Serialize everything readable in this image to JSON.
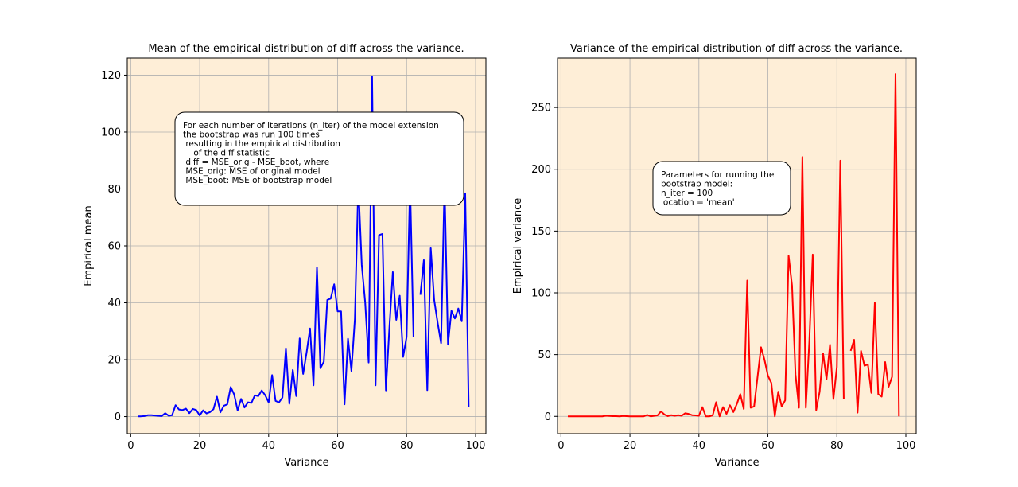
{
  "chart_data": [
    {
      "type": "line",
      "title": "Mean of the empirical distribution of diff across the variance.",
      "xlabel": "Variance",
      "ylabel": "Empirical mean",
      "xlim": [
        -1,
        103
      ],
      "ylim": [
        -6,
        126
      ],
      "xticks": [
        0,
        20,
        40,
        60,
        80,
        100
      ],
      "yticks": [
        0,
        20,
        40,
        60,
        80,
        100,
        120
      ],
      "grid": true,
      "background": "#feeed7",
      "series": [
        {
          "color": "#0000ff",
          "x": [
            2,
            3,
            4,
            5,
            6,
            7,
            8,
            9,
            10,
            11,
            12,
            13,
            14,
            15,
            16,
            17,
            18,
            19,
            20,
            21,
            22,
            23,
            24,
            25,
            26,
            27,
            28,
            29,
            30,
            31,
            32,
            33,
            34,
            35,
            36,
            37,
            38,
            39,
            40,
            41,
            42,
            43,
            44,
            45,
            46,
            47,
            48,
            49,
            50,
            51,
            52,
            53,
            54,
            55,
            56,
            57,
            58,
            59,
            60,
            61,
            62,
            63,
            64,
            65,
            66,
            67,
            68,
            69,
            70,
            71,
            72,
            73,
            74,
            75,
            76,
            77,
            78,
            79,
            80,
            81,
            82,
            83,
            84,
            85,
            86,
            87,
            88,
            89,
            90,
            91,
            92,
            93,
            94,
            95,
            96,
            97,
            98
          ],
          "y": [
            0.1,
            0.1,
            0.2,
            0.5,
            0.5,
            0.4,
            0.3,
            0.2,
            1.2,
            0.3,
            0.5,
            4,
            2.5,
            2.3,
            2.8,
            1.2,
            2.7,
            2.3,
            0.4,
            2.2,
            1.1,
            1.6,
            2.6,
            7,
            1.5,
            3.8,
            4.3,
            10.4,
            7.8,
            2.2,
            6.2,
            3.2,
            5,
            4.8,
            7.5,
            7.2,
            9.2,
            7.5,
            5,
            14.6,
            5.5,
            5,
            6.7,
            24,
            4.5,
            16.4,
            7.2,
            27.5,
            15,
            22.5,
            31,
            11,
            52.5,
            17,
            19.3,
            41,
            41.5,
            46.5,
            37,
            37,
            4.3,
            27.4,
            16,
            34.3,
            82,
            53.3,
            40,
            19,
            119.5,
            11,
            63.8,
            64.2,
            9.2,
            31,
            50.8,
            34,
            42.5,
            21,
            28,
            82.5,
            28,
            null,
            42.8,
            55,
            9.3,
            59.2,
            41,
            33,
            25.8,
            82,
            25.3,
            37.2,
            34.5,
            38,
            33.5,
            78.5,
            3.5
          ]
        }
      ],
      "annotation": [
        "For each number of iterations (n_iter) of the model extension",
        "the bootstrap was run 100 times",
        " resulting in the empirical distribution",
        "    of the diff statistic",
        " diff = MSE_orig - MSE_boot, where",
        " MSE_orig: MSE of original model",
        " MSE_boot: MSE of bootstrap model"
      ]
    },
    {
      "type": "line",
      "title": "Variance of the empirical distribution of diff across the variance.",
      "xlabel": "Variance",
      "ylabel": "Empirical variance",
      "xlim": [
        -1,
        103
      ],
      "ylim": [
        -14,
        290
      ],
      "xticks": [
        0,
        20,
        40,
        60,
        80,
        100
      ],
      "yticks": [
        0,
        50,
        100,
        150,
        200,
        250
      ],
      "grid": true,
      "background": "#feeed7",
      "series": [
        {
          "color": "#ff0000",
          "x": [
            2,
            3,
            4,
            5,
            6,
            7,
            8,
            9,
            10,
            11,
            12,
            13,
            14,
            15,
            16,
            17,
            18,
            19,
            20,
            21,
            22,
            23,
            24,
            25,
            26,
            27,
            28,
            29,
            30,
            31,
            32,
            33,
            34,
            35,
            36,
            37,
            38,
            39,
            40,
            41,
            42,
            43,
            44,
            45,
            46,
            47,
            48,
            49,
            50,
            51,
            52,
            53,
            54,
            55,
            56,
            57,
            58,
            59,
            60,
            61,
            62,
            63,
            64,
            65,
            66,
            67,
            68,
            69,
            70,
            71,
            72,
            73,
            74,
            75,
            76,
            77,
            78,
            79,
            80,
            81,
            82,
            83,
            84,
            85,
            86,
            87,
            88,
            89,
            90,
            91,
            92,
            93,
            94,
            95,
            96,
            97,
            98
          ],
          "y": [
            0,
            0,
            0,
            0,
            0,
            0,
            0,
            0,
            0,
            0,
            0,
            0.5,
            0.3,
            0.2,
            0.2,
            0,
            0.3,
            0.2,
            0,
            0,
            0,
            0,
            0,
            1.2,
            0,
            0.4,
            0.8,
            4,
            1.5,
            0.2,
            1,
            0.5,
            1,
            0.5,
            2.5,
            2,
            1,
            0.8,
            0.5,
            7.5,
            0,
            0,
            0.8,
            11.5,
            0,
            7.5,
            2,
            9,
            3.5,
            10,
            18,
            6,
            110,
            7,
            8,
            32,
            56,
            46,
            33,
            27,
            0,
            20,
            8,
            13,
            130,
            106,
            34,
            7,
            210,
            7,
            60,
            131,
            5,
            20,
            51,
            30,
            58,
            14,
            40,
            207,
            14,
            null,
            53,
            62,
            3,
            53,
            41,
            42,
            19,
            92,
            18,
            16,
            44,
            24,
            32,
            277,
            0
          ]
        }
      ],
      "annotation": [
        "Parameters for running the",
        "bootstrap model:",
        "n_iter = 100",
        "location = 'mean'"
      ]
    }
  ]
}
